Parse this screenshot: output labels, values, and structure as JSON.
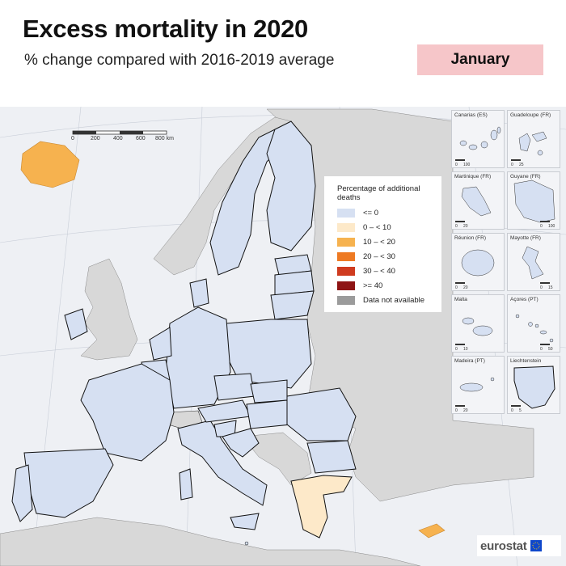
{
  "title": "Excess mortality in 2020",
  "subtitle": "% change compared with 2016-2019 average",
  "period_label": "January",
  "legend": {
    "title": "Percentage of additional deaths",
    "items": [
      {
        "label": "<= 0",
        "color": "#d6e0f2"
      },
      {
        "label": "0 – < 10",
        "color": "#fde9c9"
      },
      {
        "label": "10 – < 20",
        "color": "#f6b24f"
      },
      {
        "label": "20 – < 30",
        "color": "#ee7a23"
      },
      {
        "label": "30 – < 40",
        "color": "#cf3b1f"
      },
      {
        "label": ">= 40",
        "color": "#8e1414"
      },
      {
        "label": "Data not available",
        "color": "#9b9b9b"
      }
    ]
  },
  "scale_bar": {
    "ticks": [
      "0",
      "200",
      "400",
      "600",
      "800 km"
    ]
  },
  "insets": [
    {
      "label": "Canarias (ES)",
      "scale": [
        "0",
        "100"
      ]
    },
    {
      "label": "Guadeloupe (FR)",
      "scale": [
        "0",
        "25"
      ]
    },
    {
      "label": "Martinique (FR)",
      "scale": [
        "0",
        "20"
      ]
    },
    {
      "label": "Guyane (FR)",
      "scale": [
        "0",
        "100"
      ]
    },
    {
      "label": "Réunion (FR)",
      "scale": [
        "0",
        "20"
      ]
    },
    {
      "label": "Mayotte (FR)",
      "scale": [
        "0",
        "15"
      ]
    },
    {
      "label": "Malta",
      "scale": [
        "0",
        "10"
      ]
    },
    {
      "label": "Açores (PT)",
      "scale": [
        "0",
        "50"
      ]
    },
    {
      "label": "Madeira (PT)",
      "scale": [
        "0",
        "20"
      ]
    },
    {
      "label": "Liechtenstein",
      "scale": [
        "0",
        "5"
      ]
    }
  ],
  "logo": {
    "text": "eurostat",
    "flag": "eu-flag-icon"
  },
  "colors": {
    "eu_default": "#d6e0f2",
    "non_eu_land": "#d8d8d8",
    "sea": "#eef0f4",
    "greece": "#fde9c9",
    "iceland": "#f6b24f",
    "cyprus": "#f6b24f",
    "no_data": "#9b9b9b",
    "border": "#000000"
  }
}
